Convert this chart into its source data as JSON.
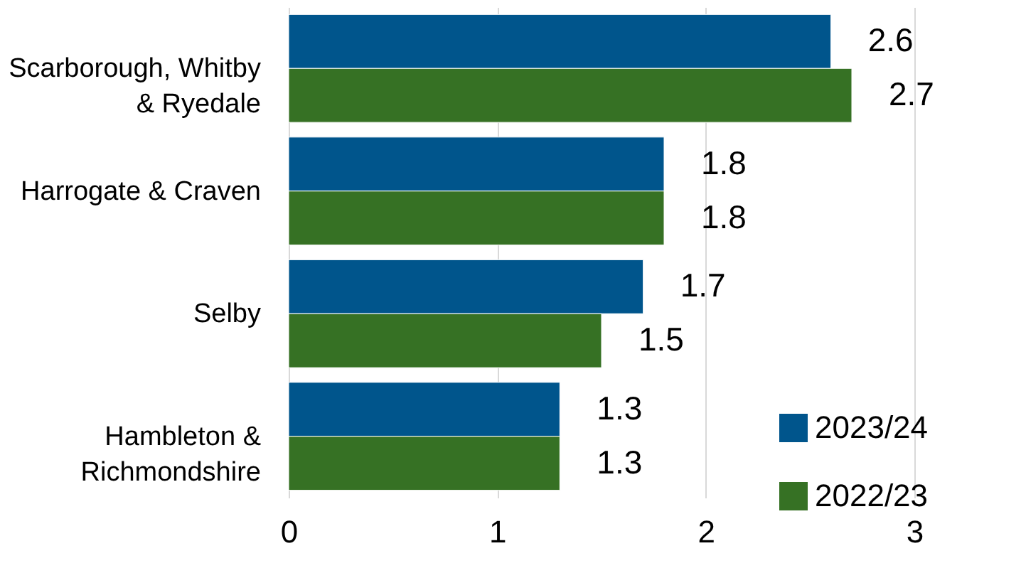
{
  "chart_data": {
    "type": "bar",
    "orientation": "horizontal",
    "categories": [
      "Scarborough, Whitby & Ryedale",
      "Harrogate & Craven",
      "Selby",
      "Hambleton & Richmondshire"
    ],
    "series": [
      {
        "name": "2023/24",
        "color": "#00558c",
        "values": [
          2.6,
          1.8,
          1.7,
          1.3
        ]
      },
      {
        "name": "2022/23",
        "color": "#367124",
        "values": [
          2.7,
          1.8,
          1.5,
          1.3
        ]
      }
    ],
    "xlim": [
      0,
      3
    ],
    "xticks": [
      0,
      1,
      2,
      3
    ],
    "grid": "x",
    "legend": "bottom right",
    "data_labels": true
  }
}
